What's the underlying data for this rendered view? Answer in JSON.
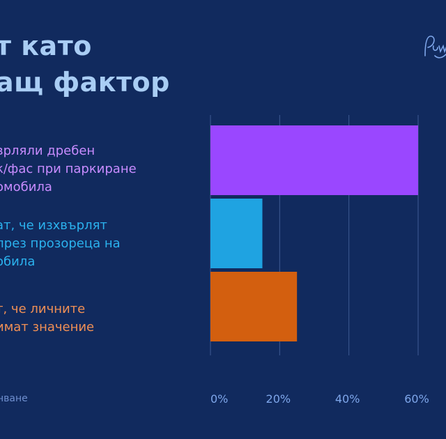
{
  "title": {
    "line1": "т като",
    "line2": "ащ фактор"
  },
  "source_text": "нване",
  "logo": {
    "color": "#7ea6ea"
  },
  "colors": {
    "background": "#112a5e",
    "gridline": "#3e5a94",
    "tick_text": "#7ea6ea"
  },
  "chart_data": {
    "type": "bar",
    "orientation": "horizontal",
    "categories": [
      [
        "врляли дребен",
        "к/фас при паркиране",
        "омобила"
      ],
      [
        "ат, че изхвърлят",
        "през прозореца на",
        "обила"
      ],
      [
        "т, че личните",
        "имат значение"
      ]
    ],
    "values": [
      60,
      15,
      25
    ],
    "colors": [
      "#9a47ff",
      "#1fa3e1",
      "#d35f0f"
    ],
    "label_colors": [
      "#c88cff",
      "#2bb2ee",
      "#ef8f55"
    ],
    "xlim": [
      0,
      60
    ],
    "xticks": [
      0,
      20,
      40,
      60
    ],
    "tick_labels": [
      "0%",
      "20%",
      "40%",
      "60%"
    ],
    "grid": true
  }
}
